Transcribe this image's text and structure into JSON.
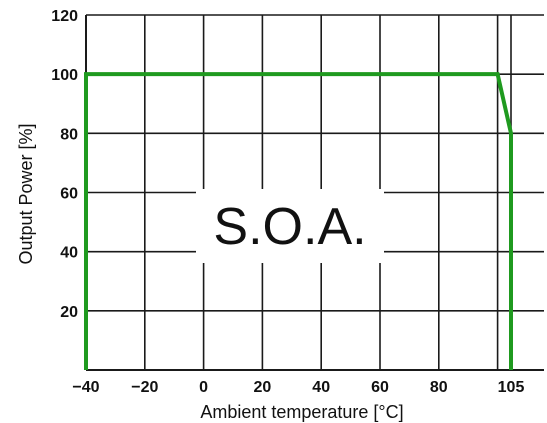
{
  "chart_data": {
    "type": "line",
    "xlabel": "Ambient temperature [°C]",
    "ylabel": "Output Power [%]",
    "xlim": [
      -40,
      105
    ],
    "ylim": [
      0,
      120
    ],
    "x_ticks": [
      "−40",
      "−20",
      "0",
      "20",
      "40",
      "60",
      "80",
      "105"
    ],
    "y_ticks": [
      "120",
      "100",
      "80",
      "60",
      "40",
      "20"
    ],
    "grid": true,
    "annotation": "S.O.A.",
    "series": [
      {
        "color": "#1f9a1f",
        "points": [
          {
            "x": -40,
            "y": 0
          },
          {
            "x": -40,
            "y": 100
          },
          {
            "x": 100,
            "y": 100
          },
          {
            "x": 105,
            "y": 80
          },
          {
            "x": 105,
            "y": 0
          }
        ]
      }
    ]
  }
}
